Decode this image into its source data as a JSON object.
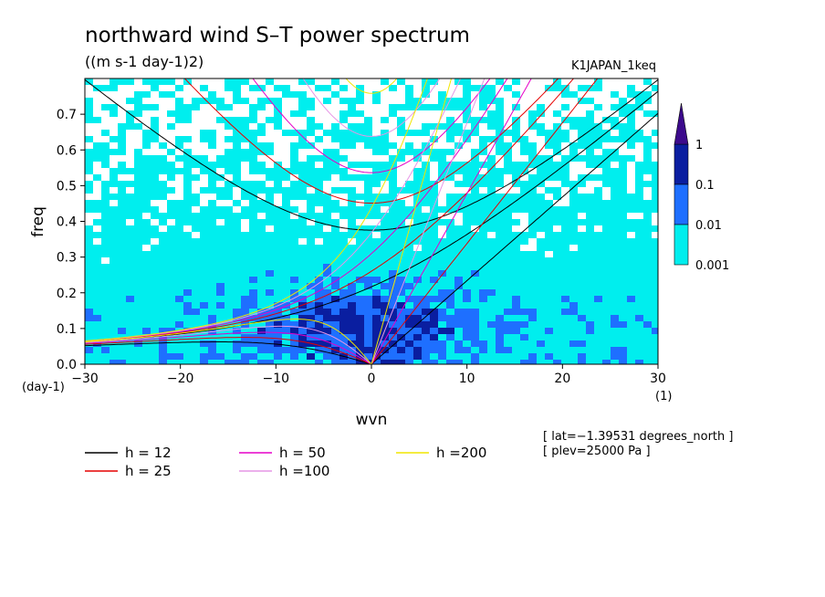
{
  "chart_data": {
    "type": "heatmap",
    "title": "northward wind S–T power spectrum",
    "subtitle": "((m s-1 day-1)2)",
    "dataset": "K1JAPAN_1keq",
    "xlabel": "wvn",
    "ylabel": "freq",
    "x_unit": "(1)",
    "y_unit": "(day-1)",
    "xlim": [
      -30,
      30
    ],
    "ylim": [
      0,
      0.8
    ],
    "x_ticks": [
      "−30",
      "−20",
      "−10",
      "0",
      "10",
      "20",
      "30"
    ],
    "x_tick_values": [
      -30,
      -20,
      -10,
      0,
      10,
      20,
      30
    ],
    "y_ticks": [
      "0.0",
      "0.1",
      "0.2",
      "0.3",
      "0.4",
      "0.5",
      "0.6",
      "0.7"
    ],
    "y_tick_values": [
      0,
      0.1,
      0.2,
      0.3,
      0.4,
      0.5,
      0.6,
      0.7
    ],
    "colorbar": {
      "levels": [
        "0.001",
        "0.01",
        "0.1",
        "1"
      ],
      "colors": [
        "#ffffff",
        "#00eeee",
        "#1e6fff",
        "#0a1ea0",
        "#3c0a8c"
      ]
    },
    "dispersion_curves": [
      {
        "name": "h = 12",
        "h": 12,
        "color": "#000000"
      },
      {
        "name": "h = 25",
        "h": 25,
        "color": "#e60000"
      },
      {
        "name": "h = 50",
        "h": 50,
        "color": "#e600c8"
      },
      {
        "name": "h =100",
        "h": 100,
        "color": "#e696e6"
      },
      {
        "name": "h =200",
        "h": 200,
        "color": "#f0e600"
      }
    ],
    "annotations": [
      "[ lat=−1.39531 degrees_north ]",
      "[ plev=25000 Pa ]"
    ]
  }
}
